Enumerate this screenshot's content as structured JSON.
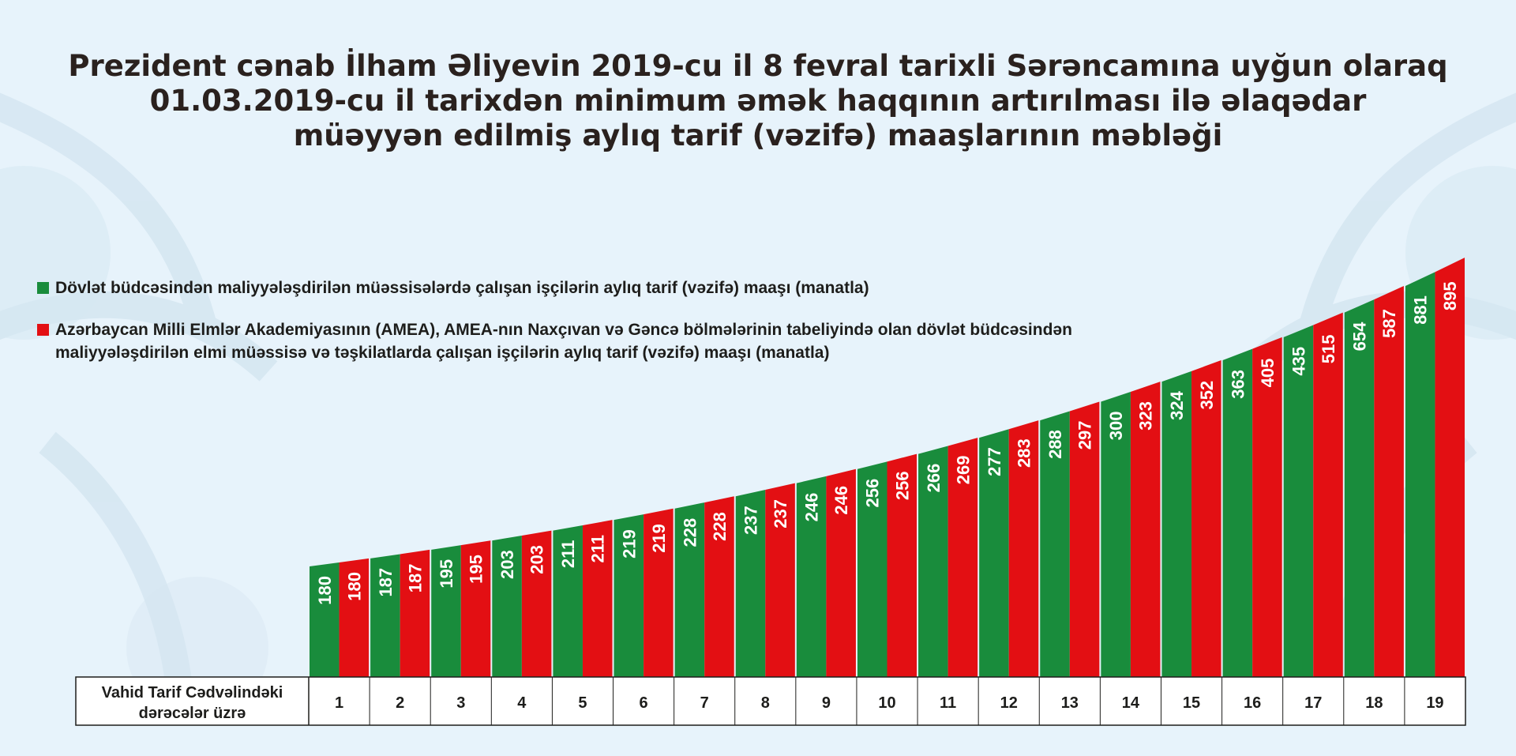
{
  "title": {
    "line1": "Prezident cənab İlham Əliyevin 2019-cu il 8 fevral tarixli Sərəncamına uyğun olaraq",
    "line2": "01.03.2019-cu il tarixdən minimum əmək haqqının artırılması ilə əlaqədar",
    "line3": "müəyyən edilmiş aylıq tarif (vəzifə) maaşlarının məbləği"
  },
  "legend": {
    "green_text": "Dövlət büdcəsindən maliyyələşdirilən müəssisələrdə çalışan işçilərin aylıq tarif (vəzifə) maaşı (manatla)",
    "red_text": "Azərbaycan Milli Elmlər Akademiyasının (AMEA), AMEA-nın Naxçıvan və Gəncə bölmələrinin tabeliyində olan dövlət büdcəsindən maliyyələşdirilən elmi müəssisə və təşkilatlarda çalışan işçilərin aylıq tarif (vəzifə) maaşı (manatla)"
  },
  "colors": {
    "green": "#198c3c",
    "red": "#e30f13",
    "background": "#e7f3fb",
    "ornament": "#d3e4f0"
  },
  "chart_data": {
    "type": "bar",
    "row_label": [
      "Vahid Tarif Cədvəlindəki",
      "dərəcələr üzrə"
    ],
    "categories": [
      "1",
      "2",
      "3",
      "4",
      "5",
      "6",
      "7",
      "8",
      "9",
      "10",
      "11",
      "12",
      "13",
      "14",
      "15",
      "16",
      "17",
      "18",
      "19"
    ],
    "series": [
      {
        "color": "#198c3c",
        "values": [
          180,
          187,
          195,
          203,
          211,
          219,
          228,
          237,
          246,
          256,
          266,
          277,
          288,
          300,
          324,
          363,
          435,
          654,
          881
        ]
      },
      {
        "color": "#e30f13",
        "values": [
          180,
          187,
          195,
          203,
          211,
          219,
          228,
          237,
          246,
          256,
          269,
          283,
          297,
          323,
          352,
          405,
          515,
          587,
          895
        ]
      }
    ],
    "grid": false,
    "legend_position": "top-left",
    "value_labels": "inside-bars-vertical"
  }
}
